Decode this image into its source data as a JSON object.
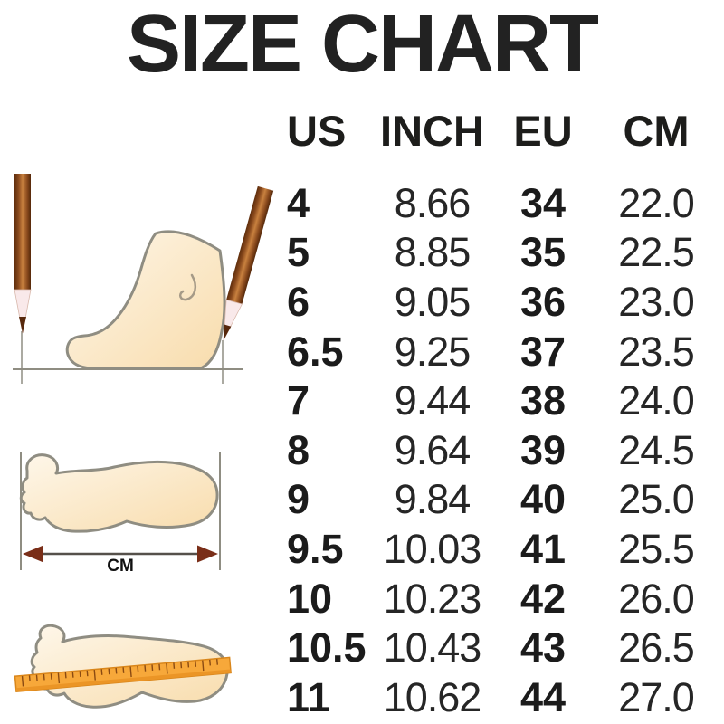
{
  "title": "SIZE CHART",
  "chart_data": {
    "type": "table",
    "title": "SIZE CHART",
    "columns": [
      "US",
      "INCH",
      "EU",
      "CM"
    ],
    "rows": [
      [
        "4",
        "8.66",
        "34",
        "22.0"
      ],
      [
        "5",
        "8.85",
        "35",
        "22.5"
      ],
      [
        "6",
        "9.05",
        "36",
        "23.0"
      ],
      [
        "6.5",
        "9.25",
        "37",
        "23.5"
      ],
      [
        "7",
        "9.44",
        "38",
        "24.0"
      ],
      [
        "8",
        "9.64",
        "39",
        "24.5"
      ],
      [
        "9",
        "9.84",
        "40",
        "25.0"
      ],
      [
        "9.5",
        "10.03",
        "41",
        "25.5"
      ],
      [
        "10",
        "10.23",
        "42",
        "26.0"
      ],
      [
        "10.5",
        "10.43",
        "43",
        "26.5"
      ],
      [
        "11",
        "10.62",
        "44",
        "27.0"
      ]
    ]
  },
  "illustrations": {
    "cm_label": "CM",
    "icons": [
      "foot-side-with-pencils-icon",
      "foot-sole-arrow-icon",
      "foot-sole-ruler-icon"
    ]
  },
  "colors": {
    "text": "#1d1d1b",
    "background": "#ffffff",
    "foot_fill_light": "#fdf2de",
    "foot_fill_dark": "#f8dcac",
    "foot_outline": "#8f8d82",
    "pencil_brown": "#8a4a1d",
    "ruler_orange": "#f7a83a",
    "arrow_dark": "#7a2e18"
  }
}
